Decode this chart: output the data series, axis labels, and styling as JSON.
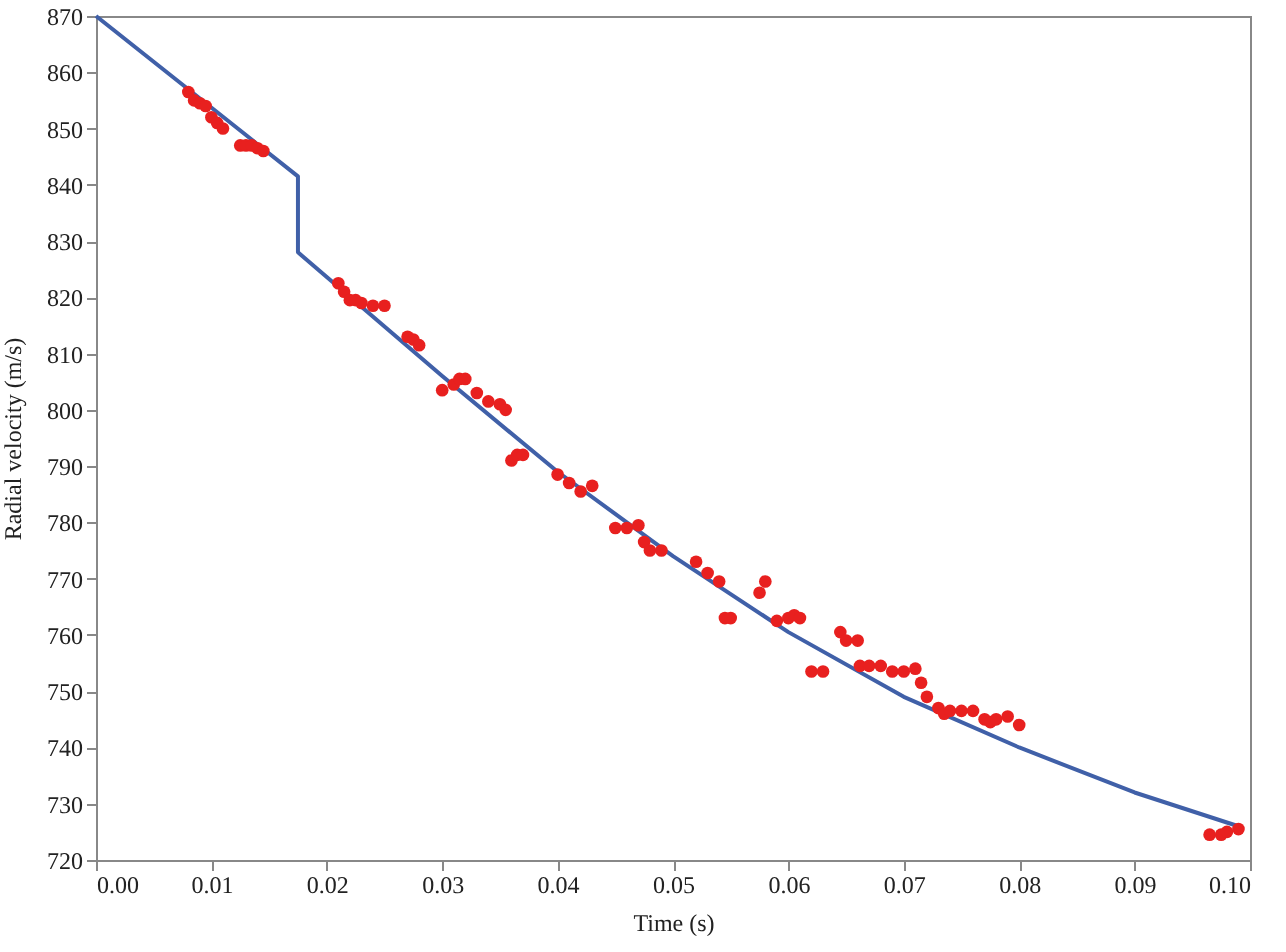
{
  "chart_data": {
    "type": "scatter",
    "xlabel": "Time (s)",
    "ylabel": "Radial velocity (m/s)",
    "xlim": [
      0,
      0.1
    ],
    "ylim": [
      720,
      870
    ],
    "xticks": [
      {
        "value": 0,
        "label": "0.00"
      },
      {
        "value": 0.01,
        "label": "0.01"
      },
      {
        "value": 0.02,
        "label": "0.02"
      },
      {
        "value": 0.03,
        "label": "0.03"
      },
      {
        "value": 0.04,
        "label": "0.04"
      },
      {
        "value": 0.05,
        "label": "0.05"
      },
      {
        "value": 0.06,
        "label": "0.06"
      },
      {
        "value": 0.07,
        "label": "0.07"
      },
      {
        "value": 0.08,
        "label": "0.08"
      },
      {
        "value": 0.09,
        "label": "0.09"
      },
      {
        "value": 0.1,
        "label": "0.10"
      }
    ],
    "yticks": [
      720,
      730,
      740,
      750,
      760,
      770,
      780,
      790,
      800,
      810,
      820,
      830,
      840,
      850,
      860,
      870
    ],
    "grid": false,
    "series": [
      {
        "type": "line",
        "color": "#4060a8",
        "x": [
          0,
          0.0175,
          0.0175,
          0.03,
          0.04,
          0.05,
          0.06,
          0.07,
          0.08,
          0.09,
          0.099
        ],
        "values": [
          870,
          841.5,
          828,
          806,
          789,
          774,
          760.5,
          749,
          740,
          732,
          726
        ]
      },
      {
        "marker": "circle",
        "color": "#e8201f",
        "x": [
          0.008,
          0.0085,
          0.009,
          0.0095,
          0.01,
          0.0105,
          0.011,
          0.0125,
          0.013,
          0.0135,
          0.014,
          0.0145,
          0.021,
          0.0215,
          0.022,
          0.0225,
          0.023,
          0.024,
          0.025,
          0.027,
          0.0275,
          0.028,
          0.03,
          0.031,
          0.0315,
          0.032,
          0.033,
          0.034,
          0.035,
          0.0355,
          0.036,
          0.0365,
          0.037,
          0.04,
          0.041,
          0.042,
          0.043,
          0.045,
          0.046,
          0.047,
          0.0475,
          0.048,
          0.049,
          0.052,
          0.053,
          0.054,
          0.0545,
          0.055,
          0.0575,
          0.058,
          0.059,
          0.06,
          0.0605,
          0.061,
          0.062,
          0.063,
          0.0645,
          0.065,
          0.066,
          0.0662,
          0.067,
          0.068,
          0.069,
          0.07,
          0.071,
          0.0715,
          0.072,
          0.073,
          0.0735,
          0.074,
          0.075,
          0.076,
          0.077,
          0.0775,
          0.078,
          0.079,
          0.08,
          0.0965,
          0.0975,
          0.098,
          0.099
        ],
        "values": [
          856.5,
          855,
          854.5,
          854,
          852,
          851,
          850,
          847,
          847,
          847,
          846.5,
          846,
          822.5,
          821,
          819.5,
          819.5,
          819,
          818.5,
          818.5,
          813,
          812.5,
          811.5,
          803.5,
          804.5,
          805.5,
          805.5,
          803,
          801.5,
          801,
          800,
          791,
          792,
          792,
          788.5,
          787,
          785.5,
          786.5,
          779,
          779,
          779.5,
          776.5,
          775,
          775,
          773,
          771,
          769.5,
          763,
          763,
          767.5,
          769.5,
          762.5,
          763,
          763.5,
          763,
          753.5,
          753.5,
          760.5,
          759,
          759,
          754.5,
          754.5,
          754.5,
          753.5,
          753.5,
          754,
          751.5,
          749,
          747,
          746,
          746.5,
          746.5,
          746.5,
          745,
          744.5,
          745,
          745.5,
          744,
          724.5,
          724.5,
          725,
          725.5
        ]
      }
    ]
  }
}
